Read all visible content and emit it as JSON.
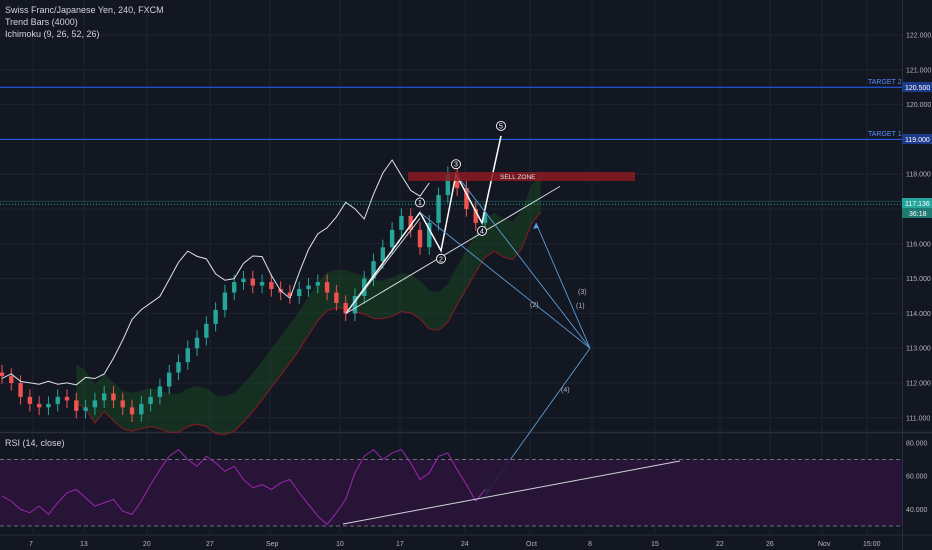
{
  "header": {
    "title": "Swiss Franc/Japanese Yen, 240, FXCM",
    "indicator_1": "Trend Bars (4000)",
    "indicator_2": "Ichimoku (9, 26, 52, 26)",
    "rsi_label": "RSI (14, close)"
  },
  "annotations": {
    "sell_zone": "SELL ZONE",
    "target_1": "TARGET 1",
    "target_2": "TARGET 2",
    "waves": [
      "1",
      "2",
      "3",
      "4",
      "5"
    ],
    "projection_labels": [
      "(1)",
      "(2)",
      "(3)",
      "(4)"
    ]
  },
  "badges": {
    "target2_price": "120.500",
    "target1_price": "119.000",
    "current_price": "117.136",
    "countdown": "36:18"
  },
  "colors": {
    "background": "#131722",
    "grid": "#1e2330",
    "bull": "#26a69a",
    "bear": "#ef5350",
    "target_line": "#2962ff",
    "sell_zone": "#8b1a22",
    "rsi_fill": "#2a1438",
    "rsi_line": "#9c27b0",
    "projection": "#5b9bd5",
    "price_badge": "#26a69a"
  },
  "chart_data": [
    {
      "type": "candlestick",
      "symbol": "CHFJPY",
      "timeframe": "240",
      "x_ticks": [
        "7",
        "13",
        "20",
        "27",
        "Sep",
        "10",
        "17",
        "24",
        "Oct",
        "8",
        "15",
        "22",
        "26",
        "Nov",
        "15:00"
      ],
      "y_ticks": [
        111.0,
        112.0,
        113.0,
        114.0,
        115.0,
        116.0,
        117.0,
        118.0,
        119.0,
        120.0,
        121.0,
        122.0
      ],
      "ylim": [
        110.6,
        122.6
      ],
      "levels": {
        "target_1": 119.0,
        "target_2": 120.5,
        "current": 117.136,
        "sell_zone": [
          117.9,
          118.05
        ]
      },
      "series": [
        {
          "close": [
            112.2,
            112.0,
            111.6,
            111.4,
            111.3,
            111.4,
            111.6,
            111.5,
            111.2,
            111.3,
            111.5,
            111.7,
            111.5,
            111.3,
            111.1,
            111.4,
            111.6,
            111.9,
            112.3,
            112.6,
            113.0,
            113.3,
            113.7,
            114.1,
            114.6,
            114.9,
            115.0,
            114.8,
            114.9,
            114.7,
            114.6,
            114.5,
            114.7,
            114.8,
            114.9,
            114.6,
            114.3,
            114.0,
            114.5,
            115.0,
            115.5,
            115.9,
            116.4,
            116.8,
            116.4,
            115.9,
            116.6,
            117.4,
            118.0,
            117.6,
            117.0,
            116.6,
            116.9
          ]
        }
      ],
      "wave_points": [
        [
          114.0
        ],
        [
          116.9
        ],
        [
          115.8
        ],
        [
          118.0
        ],
        [
          116.6
        ],
        [
          119.1
        ]
      ],
      "projection_points": [
        117.0,
        113.0,
        117.0,
        114.0
      ]
    },
    {
      "type": "line",
      "name": "RSI (14, close)",
      "y_ticks": [
        40.0,
        60.0,
        80.0
      ],
      "ylim": [
        28,
        86
      ],
      "bands": [
        30,
        70
      ],
      "values": [
        48,
        45,
        40,
        38,
        42,
        37,
        44,
        50,
        52,
        47,
        42,
        44,
        46,
        39,
        37,
        45,
        55,
        64,
        72,
        76,
        70,
        66,
        72,
        68,
        63,
        66,
        58,
        53,
        55,
        52,
        56,
        58,
        50,
        43,
        36,
        31,
        38,
        46,
        62,
        72,
        76,
        70,
        74,
        76,
        68,
        58,
        62,
        72,
        74,
        64,
        55,
        45,
        52
      ]
    }
  ]
}
